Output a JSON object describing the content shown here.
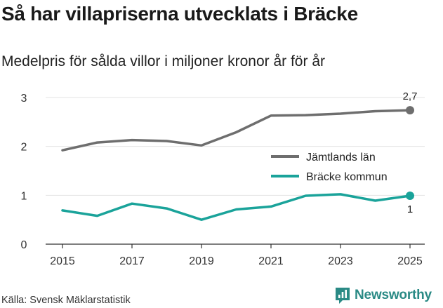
{
  "chart_data": {
    "type": "line",
    "title": "Så har villapriserna utvecklats i Bräcke",
    "subtitle": "Medelpris för sålda villor i miljoner kronor år för år",
    "x": [
      2015,
      2016,
      2017,
      2018,
      2019,
      2020,
      2021,
      2022,
      2023,
      2024,
      2025
    ],
    "xticks": [
      "2015",
      "2017",
      "2019",
      "2021",
      "2023",
      "2025"
    ],
    "yticks": [
      "0",
      "1",
      "2",
      "3"
    ],
    "ylim": [
      0,
      3
    ],
    "xlim": [
      2015,
      2025
    ],
    "series": [
      {
        "name": "Jämtlands län",
        "color": "#6e6e6e",
        "values": [
          1.92,
          2.08,
          2.13,
          2.11,
          2.02,
          2.29,
          2.63,
          2.64,
          2.67,
          2.72,
          2.74
        ],
        "end_label": "2,7"
      },
      {
        "name": "Bräcke kommun",
        "color": "#1aa39a",
        "values": [
          0.69,
          0.58,
          0.83,
          0.73,
          0.5,
          0.71,
          0.77,
          0.99,
          1.02,
          0.89,
          0.99
        ],
        "end_label": "1"
      }
    ],
    "legend": "right",
    "grid": "horizontal"
  },
  "footer": {
    "source": "Källa: Svensk Mäklarstatistik",
    "brand": "Newsworthy",
    "brand_icon": "bar-chart-logo-icon"
  }
}
